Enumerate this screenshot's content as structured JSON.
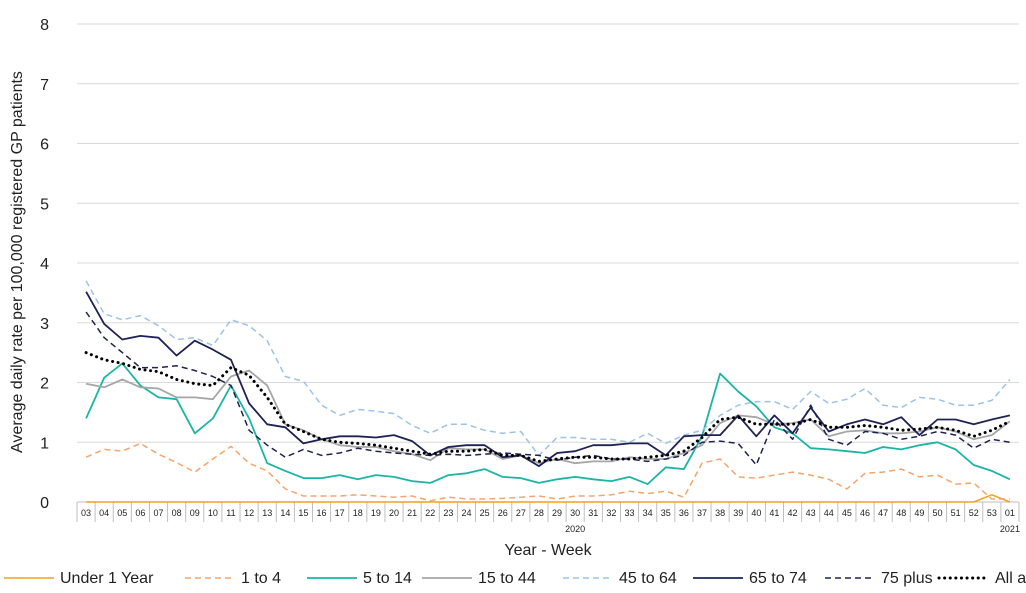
{
  "chart_data": {
    "type": "line",
    "xlabel": "Year - Week",
    "ylabel": "Average daily rate per 100,000 registered GP patients",
    "ylim": [
      0,
      8
    ],
    "yticks": [
      0,
      1,
      2,
      3,
      4,
      5,
      6,
      7,
      8
    ],
    "grid": "horizontal",
    "legend_position": "bottom",
    "x": [
      "03",
      "04",
      "05",
      "06",
      "07",
      "08",
      "09",
      "10",
      "11",
      "12",
      "13",
      "14",
      "15",
      "16",
      "17",
      "18",
      "19",
      "20",
      "21",
      "22",
      "23",
      "24",
      "25",
      "26",
      "27",
      "28",
      "29",
      "30",
      "31",
      "32",
      "33",
      "34",
      "35",
      "36",
      "37",
      "38",
      "39",
      "40",
      "41",
      "42",
      "43",
      "44",
      "45",
      "46",
      "47",
      "48",
      "49",
      "50",
      "51",
      "52",
      "53",
      "01"
    ],
    "year_labels": [
      {
        "label": "2020",
        "at_week_index": 27
      },
      {
        "label": "2021",
        "at_week_index": 51
      }
    ],
    "series": [
      {
        "name": "Under 1 Year",
        "color": "#f0a21f",
        "dash": "solid",
        "width": 1.5,
        "values": [
          0,
          0,
          0,
          0,
          0,
          0,
          0,
          0,
          0,
          0,
          0,
          0,
          0,
          0,
          0,
          0,
          0,
          0,
          0,
          0,
          0,
          0,
          0,
          0,
          0,
          0,
          0,
          0,
          0,
          0,
          0,
          0,
          0,
          0,
          0,
          0,
          0,
          0,
          0,
          0,
          0,
          0,
          0,
          0,
          0,
          0,
          0,
          0,
          0,
          0,
          0.12,
          0
        ]
      },
      {
        "name": "1 to 4",
        "color": "#f5a46b",
        "dash": "dashed",
        "width": 1.5,
        "values": [
          0.75,
          0.88,
          0.85,
          0.98,
          0.8,
          0.66,
          0.5,
          0.72,
          0.93,
          0.65,
          0.52,
          0.22,
          0.1,
          0.1,
          0.1,
          0.12,
          0.1,
          0.08,
          0.1,
          0.02,
          0.08,
          0.05,
          0.05,
          0.06,
          0.08,
          0.1,
          0.05,
          0.1,
          0.1,
          0.12,
          0.18,
          0.14,
          0.18,
          0.08,
          0.65,
          0.72,
          0.42,
          0.4,
          0.45,
          0.5,
          0.45,
          0.38,
          0.22,
          0.48,
          0.5,
          0.55,
          0.42,
          0.45,
          0.3,
          0.32,
          0.05,
          0.05
        ]
      },
      {
        "name": "5 to 14",
        "color": "#1ab5a3",
        "dash": "solid",
        "width": 1.8,
        "values": [
          1.4,
          2.08,
          2.32,
          1.95,
          1.75,
          1.72,
          1.15,
          1.4,
          1.95,
          1.4,
          0.65,
          0.52,
          0.4,
          0.4,
          0.45,
          0.38,
          0.45,
          0.42,
          0.35,
          0.32,
          0.45,
          0.48,
          0.55,
          0.42,
          0.4,
          0.32,
          0.38,
          0.42,
          0.38,
          0.35,
          0.42,
          0.3,
          0.58,
          0.55,
          1.1,
          2.15,
          1.85,
          1.6,
          1.25,
          1.15,
          0.9,
          0.88,
          0.85,
          0.82,
          0.92,
          0.88,
          0.95,
          1.0,
          0.88,
          0.62,
          0.52,
          0.38
        ]
      },
      {
        "name": "15 to 44",
        "color": "#a6a6a6",
        "dash": "solid",
        "width": 1.8,
        "values": [
          1.98,
          1.92,
          2.05,
          1.92,
          1.9,
          1.75,
          1.75,
          1.72,
          2.1,
          2.2,
          1.95,
          1.3,
          1.2,
          1.05,
          0.95,
          0.92,
          0.92,
          0.85,
          0.8,
          0.7,
          0.9,
          0.88,
          0.88,
          0.72,
          0.78,
          0.65,
          0.72,
          0.65,
          0.68,
          0.68,
          0.75,
          0.72,
          0.72,
          0.82,
          0.95,
          1.32,
          1.45,
          1.42,
          1.3,
          1.32,
          1.38,
          1.1,
          1.18,
          1.2,
          1.15,
          1.15,
          1.18,
          1.25,
          1.18,
          1.05,
          1.12,
          1.35
        ]
      },
      {
        "name": "45 to 64",
        "color": "#9cc3e6",
        "dash": "dashed",
        "width": 1.5,
        "values": [
          3.7,
          3.15,
          3.05,
          3.12,
          2.95,
          2.72,
          2.75,
          2.62,
          3.05,
          2.95,
          2.7,
          2.1,
          2.02,
          1.62,
          1.45,
          1.55,
          1.52,
          1.48,
          1.28,
          1.15,
          1.3,
          1.3,
          1.2,
          1.15,
          1.18,
          0.78,
          1.08,
          1.08,
          1.05,
          1.05,
          1.0,
          1.15,
          0.98,
          1.12,
          1.2,
          1.45,
          1.62,
          1.68,
          1.68,
          1.55,
          1.85,
          1.65,
          1.72,
          1.9,
          1.62,
          1.58,
          1.75,
          1.72,
          1.62,
          1.62,
          1.7,
          2.05
        ]
      },
      {
        "name": "65 to 74",
        "color": "#1f2255",
        "dash": "solid",
        "width": 1.8,
        "values": [
          3.52,
          2.98,
          2.72,
          2.78,
          2.75,
          2.45,
          2.7,
          2.55,
          2.38,
          1.65,
          1.3,
          1.25,
          0.98,
          1.05,
          1.1,
          1.1,
          1.08,
          1.12,
          1.02,
          0.78,
          0.92,
          0.95,
          0.95,
          0.75,
          0.78,
          0.6,
          0.82,
          0.85,
          0.95,
          0.95,
          0.98,
          0.98,
          0.78,
          1.1,
          1.12,
          1.12,
          1.45,
          1.1,
          1.45,
          1.15,
          1.58,
          1.18,
          1.3,
          1.38,
          1.3,
          1.42,
          1.12,
          1.38,
          1.38,
          1.3,
          1.38,
          1.45
        ]
      },
      {
        "name": "75 plus",
        "color": "#1f2255",
        "dash": "dashed",
        "width": 1.5,
        "values": [
          3.18,
          2.75,
          2.5,
          2.25,
          2.25,
          2.28,
          2.2,
          2.1,
          1.95,
          1.2,
          0.95,
          0.75,
          0.88,
          0.78,
          0.82,
          0.9,
          0.85,
          0.82,
          0.8,
          0.78,
          0.8,
          0.78,
          0.8,
          0.82,
          0.8,
          0.78,
          0.7,
          0.75,
          0.78,
          0.72,
          0.72,
          0.68,
          0.72,
          0.78,
          1.0,
          1.02,
          0.98,
          0.62,
          1.38,
          1.05,
          1.62,
          1.05,
          0.95,
          1.18,
          1.15,
          1.05,
          1.1,
          1.18,
          1.12,
          0.9,
          1.05,
          1.0
        ]
      },
      {
        "name": "All ages",
        "color": "#000000",
        "dash": "dotted",
        "width": 3,
        "values": [
          2.5,
          2.38,
          2.32,
          2.22,
          2.18,
          2.05,
          1.98,
          1.95,
          2.25,
          2.12,
          1.75,
          1.3,
          1.18,
          1.05,
          1.0,
          0.98,
          0.95,
          0.9,
          0.85,
          0.8,
          0.85,
          0.85,
          0.88,
          0.78,
          0.78,
          0.68,
          0.72,
          0.75,
          0.75,
          0.72,
          0.72,
          0.75,
          0.78,
          0.85,
          1.08,
          1.38,
          1.42,
          1.3,
          1.3,
          1.3,
          1.38,
          1.25,
          1.25,
          1.28,
          1.25,
          1.2,
          1.22,
          1.25,
          1.2,
          1.1,
          1.2,
          1.35
        ]
      }
    ]
  }
}
